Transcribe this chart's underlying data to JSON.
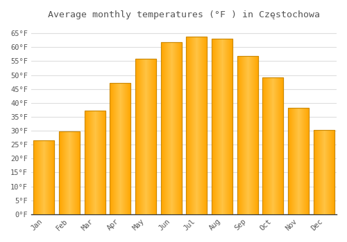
{
  "title": "Average monthly temperatures (°F ) in Częstochowa",
  "months": [
    "Jan",
    "Feb",
    "Mar",
    "Apr",
    "May",
    "Jun",
    "Jul",
    "Aug",
    "Sep",
    "Oct",
    "Nov",
    "Dec"
  ],
  "values": [
    26.6,
    29.7,
    37.2,
    47.1,
    55.9,
    61.7,
    63.9,
    63.1,
    56.8,
    49.1,
    38.3,
    30.2
  ],
  "bar_color_main": "#FFA500",
  "bar_color_light": "#FFD060",
  "bar_edge_color": "#CC8800",
  "background_color": "#FFFFFF",
  "grid_color": "#DDDDDD",
  "text_color": "#555555",
  "ylim": [
    0,
    68
  ],
  "yticks": [
    0,
    5,
    10,
    15,
    20,
    25,
    30,
    35,
    40,
    45,
    50,
    55,
    60,
    65
  ],
  "ylabel_suffix": "°F",
  "title_fontsize": 9.5,
  "tick_fontsize": 7.5,
  "bar_width": 0.82
}
